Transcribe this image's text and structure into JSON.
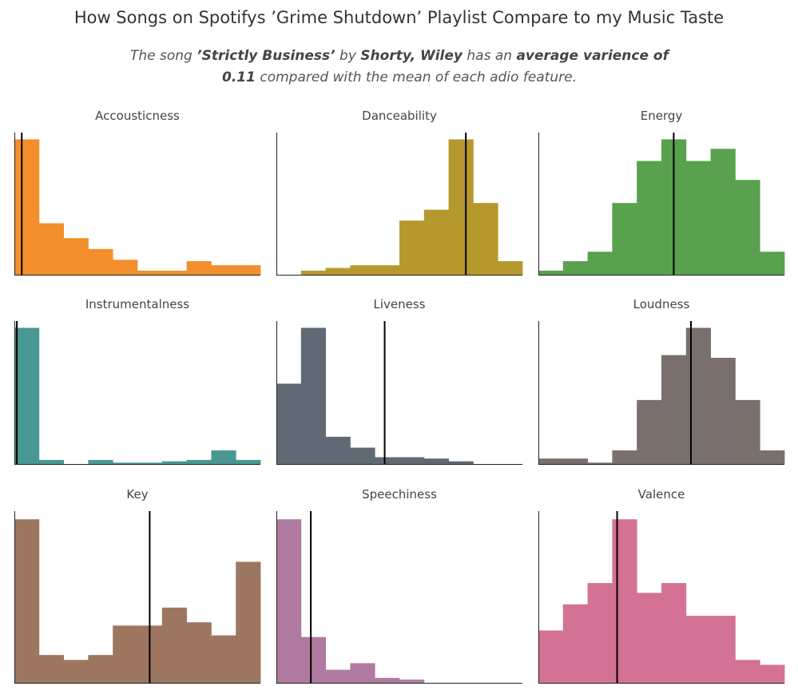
{
  "title": "How Songs on Spotifys ’Grime Shutdown’ Playlist Compare to my Music Taste",
  "subtitle": {
    "p1": "The song ",
    "song": "’Strictly Business’",
    "p2": " by ",
    "artist": "Shorty, Wiley",
    "p3": " has an ",
    "avg": "average varience of 0.11",
    "p4": " compared with the mean of each adio feature."
  },
  "chart_data": [
    {
      "type": "bar",
      "title": "Accousticness",
      "color": "#f28e2b",
      "values": [
        100,
        38,
        27,
        19,
        11,
        3,
        3,
        10,
        7,
        7
      ],
      "marker": 0.03,
      "ylim": [
        0,
        105
      ]
    },
    {
      "type": "bar",
      "title": "Danceability",
      "color": "#b6992d",
      "values": [
        0,
        3,
        5,
        7,
        7,
        40,
        48,
        100,
        53,
        10
      ],
      "marker": 0.77,
      "ylim": [
        0,
        105
      ]
    },
    {
      "type": "bar",
      "title": "Energy",
      "color": "#59a14f",
      "values": [
        3,
        10,
        17,
        53,
        84,
        100,
        84,
        93,
        70,
        17
      ],
      "marker": 0.55,
      "ylim": [
        0,
        105
      ]
    },
    {
      "type": "bar",
      "title": "Instrumentalness",
      "color": "#499894",
      "values": [
        100,
        3,
        0,
        3,
        1,
        1,
        2,
        3,
        10,
        3
      ],
      "marker": 0.01,
      "ylim": [
        0,
        105
      ]
    },
    {
      "type": "bar",
      "title": "Liveness",
      "color": "#606a74",
      "values": [
        59,
        100,
        20,
        12,
        5,
        5,
        4,
        2,
        0,
        0
      ],
      "marker": 0.44,
      "ylim": [
        0,
        105
      ]
    },
    {
      "type": "bar",
      "title": "Loudness",
      "color": "#79706e",
      "values": [
        4,
        4,
        1,
        10,
        47,
        80,
        100,
        78,
        47,
        10
      ],
      "marker": 0.62,
      "ylim": [
        0,
        105
      ]
    },
    {
      "type": "bar",
      "title": "Key",
      "color": "#9d7660",
      "values": [
        100,
        17,
        14,
        17,
        35,
        35,
        46,
        37,
        29,
        74
      ],
      "marker": 0.55,
      "ylim": [
        0,
        105
      ]
    },
    {
      "type": "bar",
      "title": "Speechiness",
      "color": "#b07aa1",
      "values": [
        100,
        28,
        8,
        12,
        3,
        2,
        0,
        0,
        0,
        0
      ],
      "marker": 0.14,
      "ylim": [
        0,
        105
      ]
    },
    {
      "type": "bar",
      "title": "Valence",
      "color": "#d37295",
      "values": [
        32,
        48,
        61,
        100,
        55,
        61,
        41,
        41,
        14,
        11
      ],
      "marker": 0.32,
      "ylim": [
        0,
        105
      ]
    }
  ]
}
